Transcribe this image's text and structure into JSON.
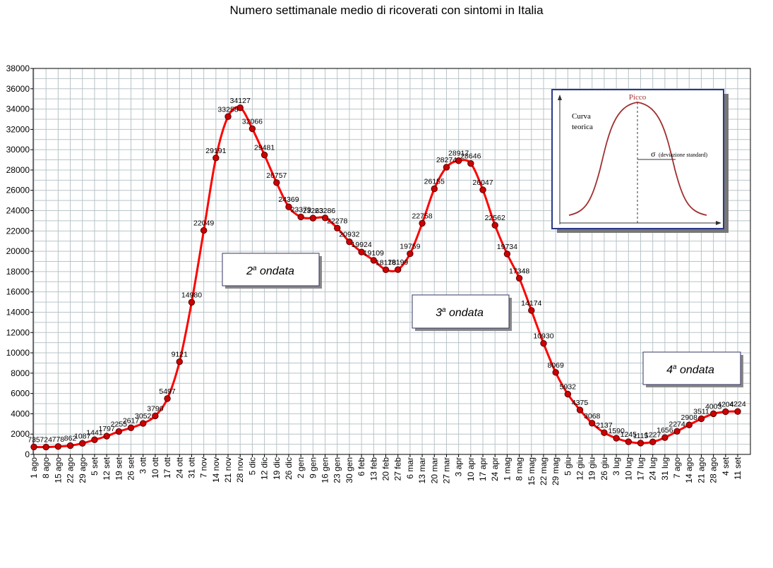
{
  "chart_data": {
    "type": "line",
    "title": "Numero settimanale medio di ricoverati con sintomi in Italia",
    "ylim": [
      0,
      38000
    ],
    "yticks": [
      0,
      2000,
      4000,
      6000,
      8000,
      10000,
      12000,
      14000,
      16000,
      18000,
      20000,
      22000,
      24000,
      26000,
      28000,
      30000,
      32000,
      34000,
      36000,
      38000
    ],
    "grid": true,
    "categories": [
      "1 ago",
      "8 ago",
      "15 ago",
      "22 ago",
      "29 ago",
      "5 set",
      "12 set",
      "19 set",
      "26 set",
      "3 ott",
      "10 ott",
      "17 ott",
      "24 ott",
      "31 ott",
      "7 nov",
      "14 nov",
      "21 nov",
      "28 nov",
      "5 dic",
      "12 dic",
      "19 dic",
      "26 dic",
      "2 gen",
      "9 gen",
      "16 gen",
      "23 gen",
      "30 gen",
      "6 feb",
      "13 feb",
      "20 feb",
      "27 feb",
      "6 mar",
      "13 mar",
      "20 mar",
      "27 mar",
      "3 apr",
      "10 apr",
      "17 apr",
      "24 apr",
      "1 mag",
      "8 mag",
      "15 mag",
      "22 mag",
      "29 mag",
      "5 giu",
      "12 giu",
      "19 giu",
      "26 giu",
      "3 lug",
      "10 lug",
      "17 lug",
      "24 lug",
      "31 lug",
      "7 ago",
      "14 ago",
      "21 ago",
      "28 ago",
      "4 set",
      "11 set"
    ],
    "values": [
      735,
      724,
      778,
      862,
      1087,
      1441,
      1797,
      2255,
      2617,
      3052,
      3790,
      5497,
      9121,
      14980,
      22049,
      29191,
      33258,
      34127,
      32066,
      29481,
      26757,
      24369,
      23379,
      23263,
      23286,
      22278,
      20932,
      19924,
      19109,
      18178,
      18199,
      19759,
      22758,
      26155,
      28274,
      28917,
      28646,
      26047,
      22562,
      19734,
      17348,
      14174,
      10930,
      8069,
      5932,
      4375,
      3068,
      2137,
      1590,
      1245,
      1115,
      1227,
      1656,
      2274,
      2908,
      3511,
      4003,
      4204,
      4224
    ],
    "annotations": [
      {
        "text_main": "2",
        "text_sup": "a",
        "text_rest": " ondata"
      },
      {
        "text_main": "3",
        "text_sup": "a",
        "text_rest": " ondata"
      },
      {
        "text_main": "4",
        "text_sup": "a",
        "text_rest": " ondata"
      }
    ],
    "inset": {
      "peak_label": "Picco",
      "curve_label_1": "Curva",
      "curve_label_2": "teorica",
      "sigma_symbol": "σ",
      "sigma_label": "(deviazione standard)"
    },
    "colors": {
      "line": "#ff0000",
      "marker_fill": "#cc0000",
      "marker_stroke": "#550000",
      "grid": "#b8c4c8",
      "inset_border": "#2a3a8a",
      "inset_curve": "#a03030"
    }
  }
}
